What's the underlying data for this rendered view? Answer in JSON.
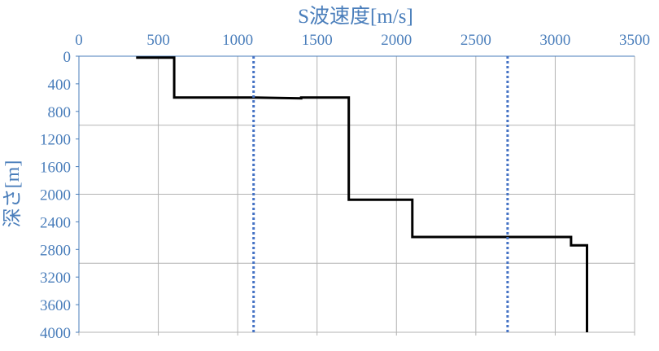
{
  "chart_data": {
    "type": "line",
    "title": "S波速度[m/s]",
    "xlabel": "S波速度[m/s]",
    "ylabel": "深さ[m]",
    "x_axis_position": "top",
    "y_axis_inverted": true,
    "xlim": [
      0,
      3500
    ],
    "ylim": [
      0,
      4000
    ],
    "x_ticks": [
      0,
      500,
      1000,
      1500,
      2000,
      2500,
      3000,
      3500
    ],
    "x_tick_labels": [
      "0",
      "500",
      "1000",
      "1500",
      "2000",
      "2500",
      "3000",
      "3500"
    ],
    "y_ticks": [
      0,
      400,
      800,
      1200,
      1600,
      2000,
      2400,
      2800,
      3200,
      3600,
      4000
    ],
    "y_tick_labels": [
      "0",
      "400",
      "800",
      "1200",
      "1600",
      "2000",
      "2400",
      "2800",
      "3200",
      "3600",
      "4000"
    ],
    "x_gridlines": [
      0,
      500,
      1000,
      1500,
      2000,
      2500,
      3000,
      3500
    ],
    "y_gridlines": [
      0,
      1000,
      2000,
      3000,
      4000
    ],
    "grid": true,
    "legend": "none",
    "colors": {
      "axis_text": "#4a7ebb",
      "grid": "#b3b3b3",
      "profile": "#000000",
      "reference": "#4472c4"
    },
    "series": [
      {
        "style": "solid",
        "color": "#000000",
        "x": [
          360,
          600,
          600,
          1100,
          1400,
          1400,
          1700,
          1700,
          2100,
          2100,
          3100,
          3100,
          3200,
          3200
        ],
        "y": [
          20,
          20,
          600,
          600,
          610,
          600,
          600,
          2080,
          2080,
          2620,
          2620,
          2740,
          2740,
          4000
        ]
      },
      {
        "style": "dotted",
        "color": "#4472c4",
        "x": [
          1100,
          1100
        ],
        "y": [
          0,
          4000
        ]
      },
      {
        "style": "dotted",
        "color": "#4472c4",
        "x": [
          2700,
          2700
        ],
        "y": [
          0,
          4000
        ]
      }
    ]
  }
}
